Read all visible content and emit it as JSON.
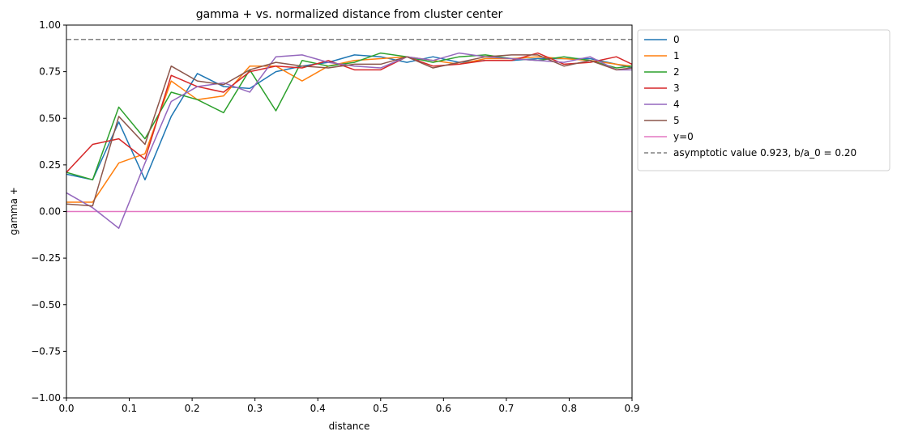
{
  "chart_data": {
    "type": "line",
    "title": "gamma + vs. normalized distance from cluster center",
    "xlabel": "distance",
    "ylabel": "gamma +",
    "xlim": [
      0.0,
      0.9
    ],
    "ylim": [
      -1.0,
      1.0
    ],
    "x_ticks": [
      "0.0",
      "0.1",
      "0.2",
      "0.3",
      "0.4",
      "0.5",
      "0.6",
      "0.7",
      "0.8",
      "0.9"
    ],
    "y_ticks": [
      "1.00",
      "0.75",
      "0.50",
      "0.25",
      "0.00",
      "−0.25",
      "−0.50",
      "−0.75",
      "−1.00"
    ],
    "grid": false,
    "legend_position": "outside-right-top",
    "x": [
      0.0,
      0.0417,
      0.0833,
      0.125,
      0.1667,
      0.2083,
      0.25,
      0.2917,
      0.3333,
      0.375,
      0.4167,
      0.4583,
      0.5,
      0.5417,
      0.5833,
      0.625,
      0.6667,
      0.7083,
      0.75,
      0.7917,
      0.8333,
      0.875,
      0.9
    ],
    "series": [
      {
        "name": "0",
        "color": "#1f77b4",
        "values": [
          0.2,
          0.17,
          0.48,
          0.17,
          0.51,
          0.74,
          0.67,
          0.66,
          0.75,
          0.78,
          0.8,
          0.84,
          0.83,
          0.8,
          0.83,
          0.8,
          0.81,
          0.81,
          0.82,
          0.82,
          0.82,
          0.79,
          0.77
        ]
      },
      {
        "name": "1",
        "color": "#ff7f0e",
        "values": [
          0.05,
          0.05,
          0.26,
          0.31,
          0.7,
          0.6,
          0.62,
          0.78,
          0.78,
          0.7,
          0.78,
          0.81,
          0.82,
          0.83,
          0.81,
          0.79,
          0.82,
          0.82,
          0.83,
          0.82,
          0.81,
          0.79,
          0.78
        ]
      },
      {
        "name": "2",
        "color": "#2ca02c",
        "values": [
          0.21,
          0.17,
          0.56,
          0.39,
          0.64,
          0.6,
          0.53,
          0.76,
          0.54,
          0.81,
          0.78,
          0.8,
          0.85,
          0.83,
          0.8,
          0.83,
          0.84,
          0.82,
          0.81,
          0.83,
          0.81,
          0.77,
          0.78
        ]
      },
      {
        "name": "3",
        "color": "#d62728",
        "values": [
          0.21,
          0.36,
          0.39,
          0.28,
          0.73,
          0.67,
          0.64,
          0.75,
          0.78,
          0.77,
          0.81,
          0.76,
          0.76,
          0.83,
          0.78,
          0.79,
          0.81,
          0.81,
          0.85,
          0.79,
          0.8,
          0.83,
          0.79
        ]
      },
      {
        "name": "4",
        "color": "#9467bd",
        "values": [
          0.1,
          0.02,
          -0.09,
          0.26,
          0.59,
          0.67,
          0.69,
          0.64,
          0.83,
          0.84,
          0.8,
          0.78,
          0.77,
          0.83,
          0.81,
          0.85,
          0.83,
          0.82,
          0.81,
          0.8,
          0.83,
          0.76,
          0.76
        ]
      },
      {
        "name": "5",
        "color": "#8c564b",
        "values": [
          0.04,
          0.03,
          0.51,
          0.36,
          0.78,
          0.7,
          0.68,
          0.76,
          0.8,
          0.78,
          0.77,
          0.79,
          0.79,
          0.83,
          0.77,
          0.8,
          0.83,
          0.84,
          0.84,
          0.78,
          0.81,
          0.76,
          0.77
        ]
      }
    ],
    "reference_lines": [
      {
        "name": "y=0",
        "y": 0.0,
        "color": "#e377c2",
        "style": "solid"
      },
      {
        "name": "asymptotic value 0.923, b/a_0 = 0.20",
        "y": 0.923,
        "color": "#808080",
        "style": "dashed"
      }
    ]
  }
}
